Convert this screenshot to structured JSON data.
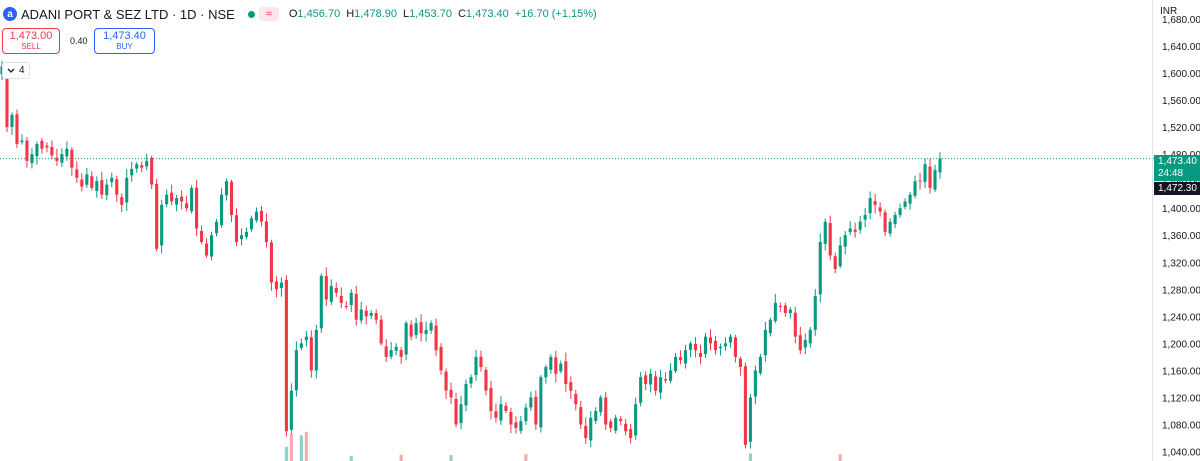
{
  "header": {
    "logo_letter": "a",
    "symbol_title": "ADANI PORT & SEZ LTD · 1D · NSE",
    "status_color": "#089981",
    "wave_icon": "≈",
    "ohlc": [
      {
        "key": "O",
        "value": "1,456.70"
      },
      {
        "key": "H",
        "value": "1,478.90"
      },
      {
        "key": "L",
        "value": "1,453.70"
      },
      {
        "key": "C",
        "value": "1,473.40"
      },
      {
        "key": "",
        "value": "+16.70 (+1.15%)"
      }
    ]
  },
  "trade": {
    "sell_price": "1,473.00",
    "sell_label": "SELL",
    "spread": "0.40",
    "buy_price": "1,473.40",
    "buy_label": "BUY"
  },
  "indicators_count": "4",
  "axis": {
    "currency": "INR",
    "last_price": "1,473.40",
    "countdown": "24:48",
    "bid_price": "1,472.30"
  },
  "colors": {
    "up": "#089981",
    "down": "#f23645",
    "volume_up": "#8fd1c6",
    "volume_down": "#f7a9af"
  },
  "chart_data": {
    "type": "candlestick",
    "symbol": "ADANI PORT & SEZ LTD",
    "interval": "1D",
    "exchange": "NSE",
    "currency": "INR",
    "y_ticks": [
      1040,
      1080,
      1120,
      1160,
      1200,
      1240,
      1280,
      1320,
      1360,
      1400,
      1440,
      1480,
      1520,
      1560,
      1600,
      1640,
      1680
    ],
    "y_tick_labels": [
      "1,040.00",
      "1,080.00",
      "1,120.00",
      "1,160.00",
      "1,200.00",
      "1,240.00",
      "1,280.00",
      "1,320.00",
      "1,360.00",
      "1,400.00",
      "1,440.00",
      "1,480.00",
      "1,520.00",
      "1,560.00",
      "1,600.00",
      "1,640.00",
      "1,680.00"
    ],
    "ylim": [
      1026,
      1708
    ],
    "last_price_line": 1473.4,
    "close": [
      1610,
      1520,
      1538,
      1495,
      1500,
      1470,
      1480,
      1495,
      1488,
      1490,
      1478,
      1470,
      1480,
      1488,
      1460,
      1445,
      1432,
      1450,
      1430,
      1440,
      1420,
      1435,
      1445,
      1420,
      1405,
      1445,
      1458,
      1465,
      1460,
      1470,
      1435,
      1340,
      1405,
      1420,
      1410,
      1415,
      1410,
      1400,
      1430,
      1370,
      1350,
      1330,
      1360,
      1380,
      1420,
      1440,
      1390,
      1350,
      1360,
      1365,
      1385,
      1395,
      1380,
      1350,
      1290,
      1280,
      1290,
      1070,
      1130,
      1190,
      1200,
      1210,
      1160,
      1220,
      1300,
      1265,
      1285,
      1275,
      1260,
      1255,
      1275,
      1235,
      1250,
      1240,
      1245,
      1235,
      1200,
      1180,
      1190,
      1195,
      1180,
      1230,
      1210,
      1230,
      1215,
      1220,
      1230,
      1190,
      1160,
      1130,
      1120,
      1080,
      1110,
      1140,
      1150,
      1180,
      1165,
      1130,
      1100,
      1090,
      1110,
      1100,
      1080,
      1075,
      1085,
      1105,
      1120,
      1080,
      1150,
      1165,
      1180,
      1155,
      1170,
      1140,
      1130,
      1110,
      1080,
      1060,
      1090,
      1100,
      1120,
      1080,
      1075,
      1090,
      1085,
      1070,
      1060,
      1110,
      1150,
      1140,
      1155,
      1130,
      1150,
      1145,
      1160,
      1180,
      1175,
      1190,
      1200,
      1190,
      1180,
      1210,
      1200,
      1190,
      1195,
      1200,
      1210,
      1180,
      1165,
      1050,
      1120,
      1160,
      1180,
      1220,
      1235,
      1260,
      1255,
      1245,
      1250,
      1210,
      1190,
      1205,
      1220,
      1270,
      1350,
      1380,
      1330,
      1310,
      1345,
      1360,
      1370,
      1365,
      1380,
      1390,
      1415,
      1405,
      1395,
      1365,
      1380,
      1390,
      1400,
      1410,
      1420,
      1440,
      1440,
      1465,
      1430,
      1456.7,
      1473.4
    ]
  }
}
